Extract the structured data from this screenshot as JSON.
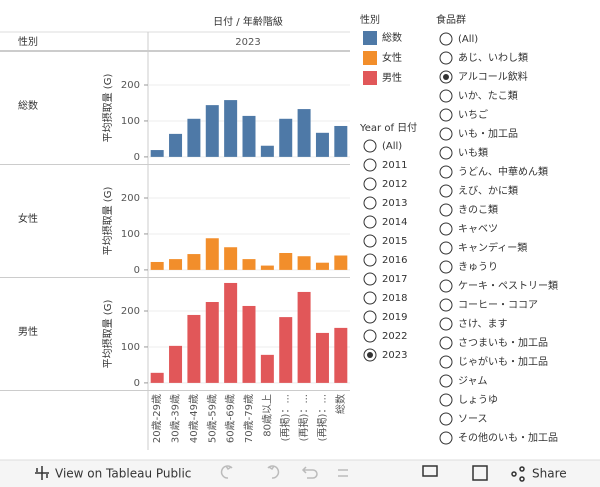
{
  "chart_data": [
    {
      "type": "bar",
      "row_label": "総数",
      "y_label": "平均摂取量 (G)",
      "color": "#4e79a7",
      "values": [
        19,
        64,
        106,
        144,
        158,
        114,
        31,
        106,
        133,
        67,
        86
      ],
      "ylim": [
        -17,
        289
      ],
      "yticks": [
        0,
        100,
        200
      ],
      "grid": true
    },
    {
      "type": "bar",
      "row_label": "女性",
      "y_label": "平均摂取量 (G)",
      "color": "#f28e2b",
      "values": [
        22,
        30,
        44,
        88,
        63,
        30,
        12,
        47,
        38,
        20,
        40
      ],
      "ylim": [
        -17,
        289
      ],
      "yticks": [
        0,
        100,
        200
      ],
      "grid": true
    },
    {
      "type": "bar",
      "row_label": "男性",
      "y_label": "平均摂取量 (G)",
      "color": "#e15759",
      "values": [
        28,
        103,
        189,
        225,
        278,
        214,
        78,
        183,
        253,
        139,
        153
      ],
      "ylim": [
        -17,
        289
      ],
      "yticks": [
        0,
        100,
        200
      ],
      "grid": true,
      "categories": [
        "20歳-29歳",
        "30歳-39歳",
        "40歳-49歳",
        "50歳-59歳",
        "60歳-69歳",
        "70歳-79歳",
        "80歳以上",
        "(再掲)：...",
        "(再掲)：...",
        "(再掲)：...",
        "総数"
      ]
    }
  ],
  "header": {
    "column_title": "日付 / 年齢階級",
    "row_title": "性別",
    "column_value": "2023"
  },
  "legend": {
    "title": "性別"
  },
  "year_filter": {
    "title": "Year of 日付",
    "options": [
      "(All)",
      "2011",
      "2012",
      "2013",
      "2014",
      "2015",
      "2016",
      "2017",
      "2018",
      "2019",
      "2022",
      "2023"
    ],
    "selected": 11
  },
  "food_filter": {
    "title": "食品群",
    "options": [
      "(All)",
      "あじ、いわし類",
      "アルコール飲料",
      "いか、たこ類",
      "いちご",
      "いも・加工品",
      "いも類",
      "うどん、中華めん類",
      "えび、かに類",
      "きのこ類",
      "キャベツ",
      "キャンディー類",
      "きゅうり",
      "ケーキ・ペストリー類",
      "コーヒー・ココア",
      "さけ、ます",
      "さつまいも・加工品",
      "じゃがいも・加工品",
      "ジャム",
      "しょうゆ",
      "ソース",
      "その他のいも・加工品"
    ],
    "selected": 2
  },
  "toolbar": {
    "view_link": "View on Tableau Public",
    "share": "Share"
  }
}
